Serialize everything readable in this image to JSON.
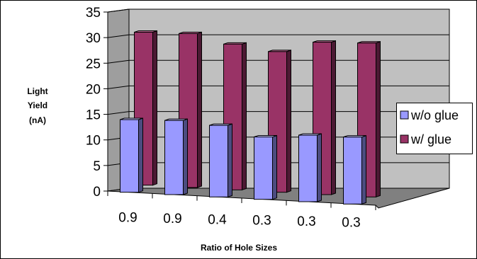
{
  "chart_data": {
    "type": "bar",
    "categories": [
      "0.9",
      "0.9",
      "0.4",
      "0.3",
      "0.3",
      "0.3"
    ],
    "series": [
      {
        "name": "w/o glue",
        "values": [
          14.2,
          14.5,
          14.0,
          12.2,
          13.0,
          13.1
        ]
      },
      {
        "name": "w/ glue",
        "values": [
          29.9,
          30.1,
          28.5,
          27.5,
          29.8,
          30.1
        ]
      }
    ],
    "xlabel": "Ratio of Hole Sizes",
    "ylabel_lines": [
      "Light",
      "Yield",
      "(nA)"
    ],
    "yticks": [
      "0",
      "5",
      "10",
      "15",
      "20",
      "25",
      "30",
      "35"
    ],
    "ylim": [
      0,
      35
    ],
    "grid": true,
    "legend_position": "right",
    "colors": {
      "w/o glue": {
        "front": "#9999ff",
        "side": "#4c4c80",
        "top": "#c6c6ff"
      },
      "w/ glue": {
        "front": "#993366",
        "side": "#4c1933",
        "top": "#c26a96"
      },
      "back_wall": "#c0c0c0",
      "side_wall": "#9e9e9e",
      "floor": "#808080"
    }
  }
}
